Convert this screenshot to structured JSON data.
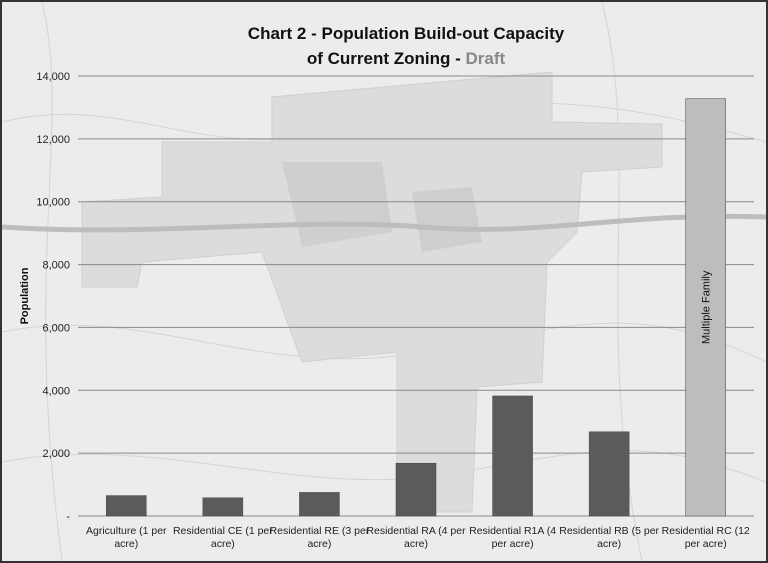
{
  "chart_data": {
    "type": "bar",
    "title_line1": "Chart 2 - Population Build-out Capacity",
    "title_line2": "of Current Zoning - ",
    "title_draft": "Draft",
    "xlabel": "",
    "ylabel": "Population",
    "ylim": [
      0,
      14000
    ],
    "yticks": [
      0,
      2000,
      4000,
      6000,
      8000,
      10000,
      12000,
      14000
    ],
    "ytick_labels": [
      "-",
      "2,000",
      "4,000",
      "6,000",
      "8,000",
      "10,000",
      "12,000",
      "14,000"
    ],
    "grid": true,
    "categories": [
      [
        "Agriculture (1 per",
        "acre)"
      ],
      [
        "Residential CE (1 per",
        "acre)"
      ],
      [
        "Residential RE (3 per",
        "acre)"
      ],
      [
        "Residential RA (4 per",
        "acre)"
      ],
      [
        "Residential R1A (4",
        "per acre)"
      ],
      [
        "Residential RB (5 per",
        "acre)"
      ],
      [
        "Residential RC (12",
        "per acre)"
      ]
    ],
    "values": [
      650,
      580,
      750,
      1680,
      3820,
      2680,
      13280
    ],
    "bar_colors": [
      "#5b5b5b",
      "#5b5b5b",
      "#5b5b5b",
      "#5b5b5b",
      "#5b5b5b",
      "#5b5b5b",
      "#bdbdbd"
    ],
    "bar_annotations": [
      "",
      "",
      "",
      "",
      "",
      "",
      "Multiple Family"
    ]
  }
}
